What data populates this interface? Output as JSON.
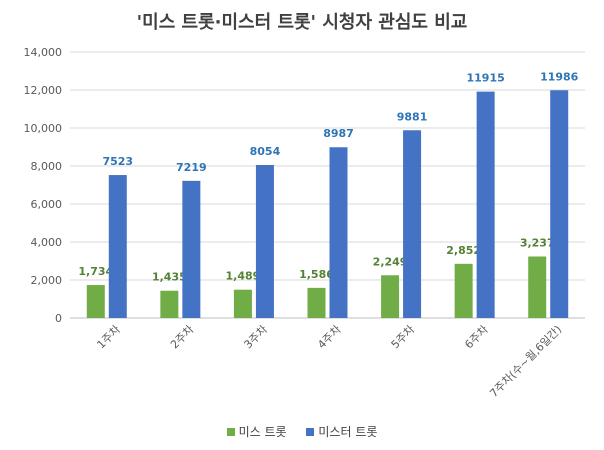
{
  "chart_data": {
    "type": "bar",
    "title": "'미스 트롯·미스터 트롯' 시청자 관심도 비교",
    "categories": [
      "1주차",
      "2주차",
      "3주차",
      "4주차",
      "5주차",
      "6주차",
      "7주차(수~월,6일간)"
    ],
    "series": [
      {
        "name": "미스 트롯",
        "color": "#70ad47",
        "label_color": "#548235",
        "values": [
          1734,
          1435,
          1489,
          1586,
          2249,
          2852,
          3237
        ],
        "labels": [
          "1,734",
          "1,435",
          "1,489",
          "1,586",
          "2,249",
          "2,852",
          "3,237"
        ]
      },
      {
        "name": "미스터 트롯",
        "color": "#4472c4",
        "label_color": "#2e75b6",
        "values": [
          7523,
          7219,
          8054,
          8987,
          9881,
          11915,
          11986
        ],
        "labels": [
          "7523",
          "7219",
          "8054",
          "8987",
          "9881",
          "11915",
          "11986"
        ]
      }
    ],
    "ylim": [
      0,
      14000
    ],
    "yticks": [
      0,
      2000,
      4000,
      6000,
      8000,
      10000,
      12000,
      14000
    ],
    "ytick_labels": [
      "0",
      "2,000",
      "4,000",
      "6,000",
      "8,000",
      "10,000",
      "12,000",
      "14,000"
    ],
    "xlabel": "",
    "ylabel": "",
    "grid": true,
    "legend_position": "bottom"
  }
}
